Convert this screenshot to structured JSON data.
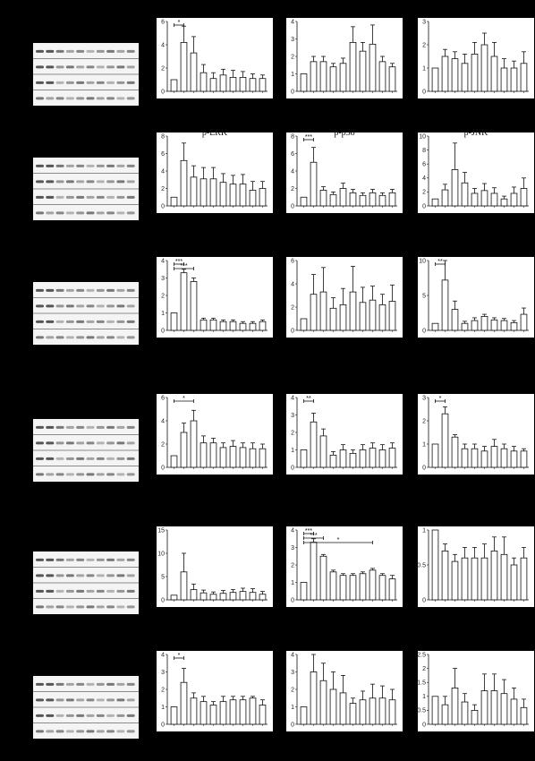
{
  "figure": {
    "background": "#000000",
    "panel_fill": "#ffffff",
    "bar_stroke": "#111111",
    "blot_fill": "#f4f4f4",
    "band_color": "#3a3a3a"
  },
  "chart_data": [
    {
      "type": "bar",
      "row": 0,
      "col": 0,
      "ylim": [
        0,
        6
      ],
      "yticks": [
        0,
        2,
        4,
        6
      ],
      "values": [
        1,
        4.2,
        3.3,
        1.6,
        1.1,
        1.4,
        1.2,
        1.2,
        1.1,
        1.1
      ],
      "errors": [
        0,
        1.4,
        1.4,
        0.7,
        0.5,
        0.5,
        0.6,
        0.5,
        0.4,
        0.3
      ],
      "title": "",
      "sig": [
        {
          "from": 0,
          "to": 1,
          "label": "*",
          "level": 0
        }
      ]
    },
    {
      "type": "bar",
      "row": 0,
      "col": 1,
      "ylim": [
        0,
        4
      ],
      "yticks": [
        0,
        1,
        2,
        3,
        4
      ],
      "values": [
        1,
        1.7,
        1.7,
        1.4,
        1.6,
        2.8,
        2.3,
        2.7,
        1.7,
        1.4
      ],
      "errors": [
        0,
        0.3,
        0.3,
        0.2,
        0.3,
        0.9,
        0.5,
        1.1,
        0.3,
        0.2
      ],
      "title": "",
      "sig": []
    },
    {
      "type": "bar",
      "row": 0,
      "col": 2,
      "ylim": [
        0,
        3
      ],
      "yticks": [
        0,
        1,
        2,
        3
      ],
      "values": [
        1,
        1.5,
        1.4,
        1.2,
        1.6,
        2.0,
        1.5,
        1.0,
        1.0,
        1.2
      ],
      "errors": [
        0,
        0.3,
        0.3,
        0.4,
        0.5,
        0.5,
        0.6,
        0.4,
        0.3,
        0.5
      ],
      "title": "",
      "sig": []
    },
    {
      "type": "bar",
      "row": 1,
      "col": 0,
      "ylim": [
        0,
        8
      ],
      "yticks": [
        0,
        2,
        4,
        6,
        8
      ],
      "values": [
        1,
        5.2,
        3.3,
        3.1,
        3.1,
        2.7,
        2.5,
        2.5,
        1.8,
        2.0
      ],
      "errors": [
        0,
        2.0,
        1.3,
        1.3,
        1.3,
        1.0,
        1.0,
        1.1,
        1.0,
        0.8
      ],
      "title": "p-ERK",
      "sig": []
    },
    {
      "type": "bar",
      "row": 1,
      "col": 1,
      "ylim": [
        0,
        8
      ],
      "yticks": [
        0,
        2,
        4,
        6,
        8
      ],
      "values": [
        1,
        5.0,
        1.8,
        1.3,
        2.0,
        1.5,
        1.2,
        1.5,
        1.2,
        1.5
      ],
      "errors": [
        0,
        1.7,
        0.4,
        0.3,
        0.6,
        0.4,
        0.3,
        0.4,
        0.3,
        0.4
      ],
      "title": "p-p38",
      "sig": [
        {
          "from": 0,
          "to": 1,
          "label": "***",
          "level": 0
        }
      ]
    },
    {
      "type": "bar",
      "row": 1,
      "col": 2,
      "ylim": [
        0,
        10
      ],
      "yticks": [
        0,
        2,
        4,
        6,
        8,
        10
      ],
      "values": [
        1,
        2.3,
        5.2,
        3.3,
        1.8,
        2.2,
        1.8,
        1.0,
        1.8,
        2.5
      ],
      "errors": [
        0,
        0.8,
        3.8,
        1.5,
        0.7,
        1.0,
        0.8,
        0.4,
        0.9,
        1.5
      ],
      "title": "p-JNK",
      "sig": []
    },
    {
      "type": "bar",
      "row": 2,
      "col": 0,
      "ylim": [
        0,
        4
      ],
      "yticks": [
        0,
        1,
        2,
        3,
        4
      ],
      "values": [
        1,
        3.3,
        2.8,
        0.6,
        0.6,
        0.5,
        0.5,
        0.4,
        0.4,
        0.5
      ],
      "errors": [
        0,
        0.2,
        0.2,
        0.1,
        0.1,
        0.1,
        0.1,
        0.1,
        0.1,
        0.1
      ],
      "title": "",
      "sig": [
        {
          "from": 0,
          "to": 1,
          "label": "***",
          "level": 0
        },
        {
          "from": 0,
          "to": 2,
          "label": "***",
          "level": 1
        }
      ]
    },
    {
      "type": "bar",
      "row": 2,
      "col": 1,
      "ylim": [
        0,
        6
      ],
      "yticks": [
        0,
        2,
        4,
        6
      ],
      "values": [
        1,
        3.1,
        3.3,
        1.9,
        2.2,
        3.3,
        2.4,
        2.6,
        2.2,
        2.5
      ],
      "errors": [
        0,
        1.7,
        2.1,
        0.9,
        1.4,
        2.2,
        1.3,
        1.2,
        0.9,
        1.4
      ],
      "title": "",
      "sig": []
    },
    {
      "type": "bar",
      "row": 2,
      "col": 2,
      "ylim": [
        0,
        10
      ],
      "yticks": [
        0,
        5,
        10
      ],
      "values": [
        1,
        7.2,
        3.0,
        1.0,
        1.4,
        2.0,
        1.5,
        1.4,
        1.1,
        2.3
      ],
      "errors": [
        0,
        4.2,
        1.2,
        0.3,
        0.4,
        0.3,
        0.3,
        0.3,
        0.3,
        0.9
      ],
      "title": "",
      "sig": [
        {
          "from": 0,
          "to": 1,
          "label": "**",
          "level": 0
        }
      ]
    },
    {
      "type": "bar",
      "row": 3,
      "col": 0,
      "ylim": [
        0,
        6
      ],
      "yticks": [
        0,
        2,
        4,
        6
      ],
      "values": [
        1,
        3.0,
        4.0,
        2.1,
        2.1,
        1.7,
        1.8,
        1.7,
        1.6,
        1.6
      ],
      "errors": [
        0,
        0.8,
        0.9,
        0.6,
        0.4,
        0.4,
        0.5,
        0.4,
        0.5,
        0.4
      ],
      "title": "",
      "sig": [
        {
          "from": 0,
          "to": 2,
          "label": "*",
          "level": 0
        }
      ]
    },
    {
      "type": "bar",
      "row": 3,
      "col": 1,
      "ylim": [
        0,
        4
      ],
      "yticks": [
        0,
        1,
        2,
        3,
        4
      ],
      "values": [
        1,
        2.6,
        1.8,
        0.7,
        1.0,
        0.8,
        1.0,
        1.1,
        1.0,
        1.1
      ],
      "errors": [
        0,
        0.5,
        0.4,
        0.2,
        0.3,
        0.2,
        0.3,
        0.3,
        0.3,
        0.3
      ],
      "title": "",
      "sig": [
        {
          "from": 0,
          "to": 1,
          "label": "**",
          "level": 0
        }
      ]
    },
    {
      "type": "bar",
      "row": 3,
      "col": 2,
      "ylim": [
        0,
        3
      ],
      "yticks": [
        0,
        1,
        2,
        3
      ],
      "values": [
        1,
        2.3,
        1.3,
        0.8,
        0.8,
        0.7,
        0.9,
        0.8,
        0.7,
        0.7
      ],
      "errors": [
        0,
        0.3,
        0.1,
        0.2,
        0.2,
        0.2,
        0.3,
        0.2,
        0.2,
        0.1
      ],
      "title": "",
      "sig": [
        {
          "from": 0,
          "to": 1,
          "label": "*",
          "level": 0
        }
      ]
    },
    {
      "type": "bar",
      "row": 4,
      "col": 0,
      "ylim": [
        0,
        15
      ],
      "yticks": [
        0,
        5,
        10,
        15
      ],
      "values": [
        1,
        6.0,
        2.2,
        1.5,
        1.2,
        1.4,
        1.6,
        1.8,
        1.6,
        1.2
      ],
      "errors": [
        0,
        4.0,
        1.2,
        0.6,
        0.5,
        0.6,
        0.6,
        0.7,
        0.8,
        0.6
      ],
      "title": "",
      "sig": []
    },
    {
      "type": "bar",
      "row": 4,
      "col": 1,
      "ylim": [
        0,
        4
      ],
      "yticks": [
        0,
        1,
        2,
        3,
        4
      ],
      "values": [
        1,
        3.3,
        2.5,
        1.6,
        1.4,
        1.4,
        1.5,
        1.7,
        1.4,
        1.2
      ],
      "errors": [
        0,
        0.2,
        0.1,
        0.1,
        0.1,
        0.1,
        0.1,
        0.1,
        0.1,
        0.2
      ],
      "title": "",
      "sig": [
        {
          "from": 0,
          "to": 1,
          "label": "***",
          "level": 0
        },
        {
          "from": 0,
          "to": 2,
          "label": "***",
          "level": 1
        },
        {
          "from": 0,
          "to": 7,
          "label": "*",
          "level": 2
        }
      ]
    },
    {
      "type": "bar",
      "row": 4,
      "col": 2,
      "ylim": [
        0,
        1.0
      ],
      "yticks": [
        0,
        0.5,
        1.0
      ],
      "values": [
        1.0,
        0.7,
        0.55,
        0.6,
        0.6,
        0.6,
        0.7,
        0.65,
        0.5,
        0.6
      ],
      "errors": [
        0,
        0.1,
        0.1,
        0.15,
        0.15,
        0.2,
        0.2,
        0.25,
        0.1,
        0.15
      ],
      "title": "",
      "sig": []
    },
    {
      "type": "bar",
      "row": 5,
      "col": 0,
      "ylim": [
        0,
        4
      ],
      "yticks": [
        0,
        1,
        2,
        3,
        4
      ],
      "values": [
        1,
        2.4,
        1.5,
        1.3,
        1.1,
        1.3,
        1.4,
        1.4,
        1.5,
        1.1
      ],
      "errors": [
        0,
        0.8,
        0.3,
        0.3,
        0.2,
        0.3,
        0.2,
        0.2,
        0.1,
        0.3
      ],
      "title": "",
      "sig": [
        {
          "from": 0,
          "to": 1,
          "label": "*",
          "level": 0
        }
      ]
    },
    {
      "type": "bar",
      "row": 5,
      "col": 1,
      "ylim": [
        0,
        4
      ],
      "yticks": [
        0,
        1,
        2,
        3,
        4
      ],
      "values": [
        1,
        3.0,
        2.5,
        2.0,
        1.8,
        1.2,
        1.4,
        1.5,
        1.5,
        1.4
      ],
      "errors": [
        0,
        1.3,
        1.0,
        1.0,
        1.0,
        0.3,
        0.5,
        0.8,
        0.7,
        0.6
      ],
      "title": "",
      "sig": []
    },
    {
      "type": "bar",
      "row": 5,
      "col": 2,
      "ylim": [
        0,
        2.5
      ],
      "yticks": [
        0,
        0.5,
        1.0,
        1.5,
        2.0,
        2.5
      ],
      "values": [
        1.0,
        0.7,
        1.3,
        0.8,
        0.5,
        1.2,
        1.2,
        1.1,
        0.9,
        0.6
      ],
      "errors": [
        0,
        0.3,
        0.7,
        0.3,
        0.2,
        0.6,
        0.6,
        0.5,
        0.4,
        0.3
      ],
      "title": "",
      "sig": []
    }
  ],
  "blots": [
    {
      "row": 0,
      "bands": 4
    },
    {
      "row": 1,
      "bands": 4
    },
    {
      "row": 2,
      "bands": 4
    },
    {
      "row": 3,
      "bands": 4
    },
    {
      "row": 4,
      "bands": 4
    },
    {
      "row": 5,
      "bands": 4
    }
  ]
}
